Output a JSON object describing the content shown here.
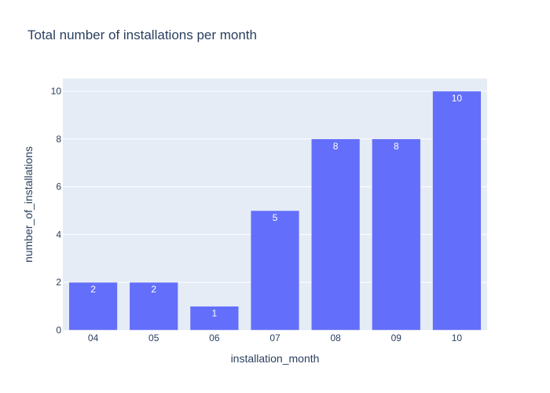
{
  "colors": {
    "plot_background": "#e5ecf6",
    "bar": "#636efa",
    "bar_outline": "#e5ecf6",
    "grid": "#ffffff",
    "text": "#2a3f5f",
    "data_label": "#ffffff"
  },
  "chart_data": {
    "type": "bar",
    "title": "Total number of installations per month",
    "xlabel": "installation_month",
    "ylabel": "number_of_installations",
    "categories": [
      "04",
      "05",
      "06",
      "07",
      "08",
      "09",
      "10"
    ],
    "values": [
      2,
      2,
      1,
      5,
      8,
      8,
      10
    ],
    "data_labels": [
      "2",
      "2",
      "1",
      "5",
      "8",
      "8",
      "10"
    ],
    "ylim": [
      0,
      10.526
    ],
    "yticks": [
      0,
      2,
      4,
      6,
      8,
      10
    ],
    "ytick_labels": [
      "0",
      "2",
      "4",
      "6",
      "8",
      "10"
    ],
    "grid": true,
    "legend": "none"
  }
}
